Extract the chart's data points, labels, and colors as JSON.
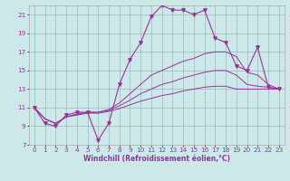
{
  "xlabel": "Windchill (Refroidissement éolien,°C)",
  "bg_color": "#cce8e8",
  "line_color": "#993399",
  "grid_color": "#99bbbb",
  "xlim_min": -0.5,
  "xlim_max": 23.5,
  "ylim_min": 7,
  "ylim_max": 22,
  "yticks": [
    7,
    9,
    11,
    13,
    15,
    17,
    19,
    21
  ],
  "xticks": [
    0,
    1,
    2,
    3,
    4,
    5,
    6,
    7,
    8,
    9,
    10,
    11,
    12,
    13,
    14,
    15,
    16,
    17,
    18,
    19,
    20,
    21,
    22,
    23
  ],
  "s1_y": [
    11.0,
    9.3,
    9.0,
    10.2,
    10.5,
    10.5,
    7.5,
    9.3,
    13.5,
    16.2,
    18.0,
    20.8,
    22.0,
    21.5,
    21.5,
    21.0,
    21.5,
    18.5,
    18.0,
    15.5,
    15.0,
    17.5,
    13.2,
    13.0
  ],
  "s2_y": [
    11.0,
    9.8,
    9.3,
    10.0,
    10.3,
    10.5,
    10.5,
    10.8,
    11.5,
    12.5,
    13.5,
    14.5,
    15.0,
    15.5,
    16.0,
    16.3,
    16.8,
    17.0,
    17.0,
    16.5,
    14.8,
    14.5,
    13.5,
    13.0
  ],
  "s3_y": [
    11.0,
    9.8,
    9.3,
    10.0,
    10.3,
    10.5,
    10.5,
    10.7,
    11.2,
    11.8,
    12.5,
    13.0,
    13.5,
    13.8,
    14.2,
    14.5,
    14.8,
    15.0,
    15.0,
    14.5,
    13.5,
    13.3,
    13.2,
    13.0
  ],
  "s4_y": [
    11.0,
    9.8,
    9.3,
    10.0,
    10.2,
    10.4,
    10.4,
    10.6,
    10.9,
    11.3,
    11.7,
    12.0,
    12.3,
    12.5,
    12.8,
    13.0,
    13.2,
    13.3,
    13.3,
    13.0,
    13.0,
    13.0,
    13.0,
    13.0
  ]
}
